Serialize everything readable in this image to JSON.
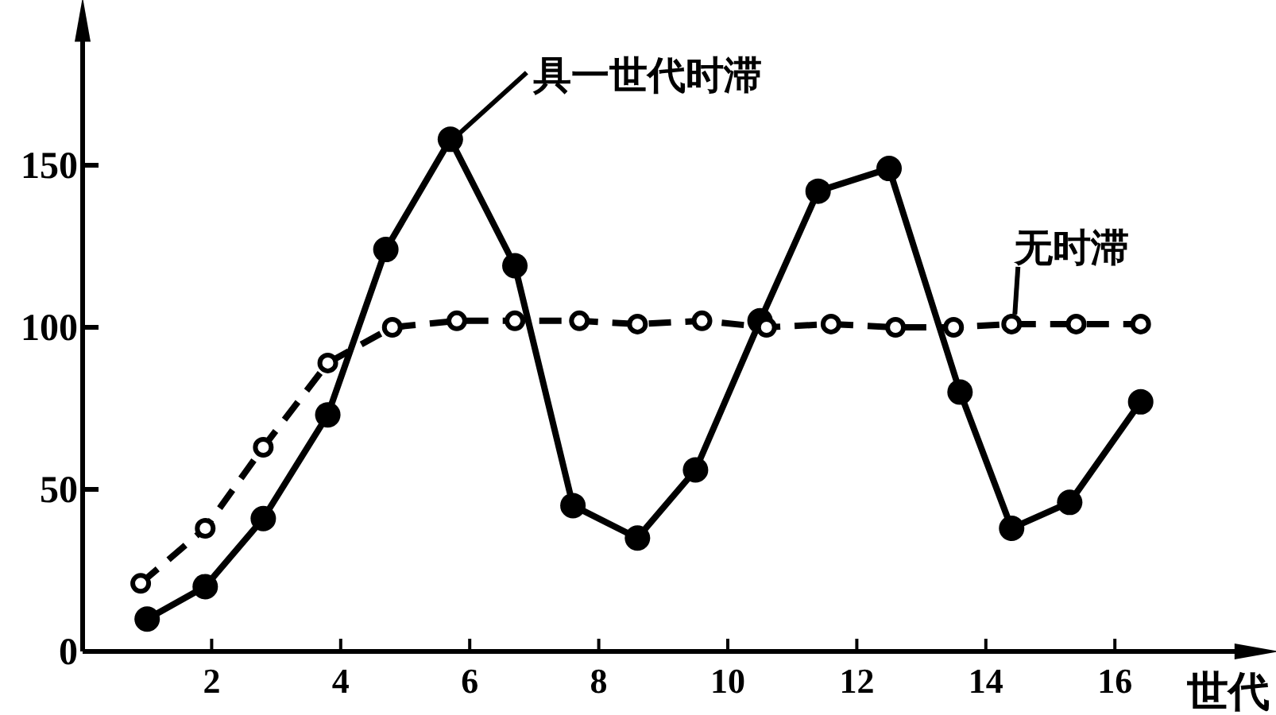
{
  "chart_data": {
    "type": "line",
    "xlabel": "世代",
    "xlim": [
      0,
      18.2
    ],
    "ylim": [
      0,
      195
    ],
    "xticks": [
      2,
      4,
      6,
      8,
      10,
      12,
      14,
      16
    ],
    "yticks": [
      0,
      50,
      100,
      150
    ],
    "marker": "circle",
    "grid": false,
    "series": [
      {
        "name": "具一世代时滞",
        "color": "#000000",
        "line_style": "solid",
        "x": [
          1,
          1.9,
          2.8,
          3.8,
          4.7,
          5.7,
          6.7,
          7.6,
          8.6,
          9.5,
          10.5,
          11.4,
          12.5,
          13.6,
          14.4,
          15.3,
          16.4
        ],
        "values": [
          10,
          20,
          41,
          73,
          124,
          158,
          119,
          45,
          35,
          56,
          102,
          142,
          149,
          80,
          38,
          46,
          77
        ]
      },
      {
        "name": "无时滞",
        "color": "#000000",
        "line_style": "dashed",
        "x": [
          0.9,
          1.9,
          2.8,
          3.8,
          4.8,
          5.8,
          6.7,
          7.7,
          8.6,
          9.6,
          10.6,
          11.6,
          12.6,
          13.5,
          14.4,
          15.4,
          16.4
        ],
        "values": [
          21,
          38,
          63,
          89,
          100,
          102,
          102,
          102,
          101,
          102,
          100,
          101,
          100,
          100,
          101,
          101,
          101
        ]
      }
    ]
  }
}
